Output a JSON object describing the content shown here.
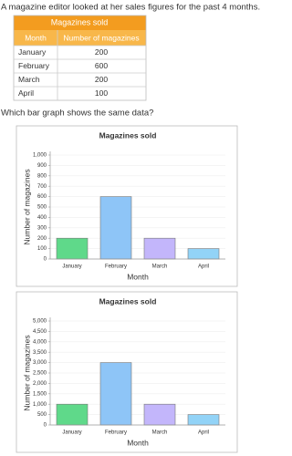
{
  "question": "A magazine editor looked at her sales figures for the past 4 months.",
  "table": {
    "title": "Magazines sold",
    "header": [
      "Month",
      "Number of magazines"
    ],
    "rows": [
      [
        "January",
        200
      ],
      [
        "February",
        600
      ],
      [
        "March",
        200
      ],
      [
        "April",
        100
      ]
    ]
  },
  "prompt": "Which bar graph shows the same data?",
  "chart_data": [
    {
      "type": "bar",
      "title": "Magazines sold",
      "x_label": "Month",
      "y_label": "Number of magazines",
      "categories": [
        "January",
        "February",
        "March",
        "April"
      ],
      "values": [
        200,
        600,
        200,
        100
      ],
      "colors": [
        "#5fd98a",
        "#8ec5f7",
        "#c3b6fb",
        "#92d3f7"
      ],
      "ylim": [
        0,
        1000
      ],
      "yticks": [
        0,
        100,
        200,
        300,
        400,
        500,
        600,
        700,
        800,
        900,
        {
          "value": 1000,
          "label": "1,000"
        }
      ],
      "grid": true
    },
    {
      "type": "bar",
      "title": "Magazines sold",
      "x_label": "Month",
      "y_label": "Number of magazines",
      "categories": [
        "January",
        "February",
        "March",
        "April"
      ],
      "values": [
        1000,
        3000,
        1000,
        500
      ],
      "colors": [
        "#5fd98a",
        "#8ec5f7",
        "#c3b6fb",
        "#92d3f7"
      ],
      "ylim": [
        0,
        5000
      ],
      "yticks": [
        0,
        500,
        {
          "value": 1000,
          "label": "1,000"
        },
        {
          "value": 1500,
          "label": "1,500"
        },
        {
          "value": 2000,
          "label": "2,000"
        },
        {
          "value": 2500,
          "label": "2,500"
        },
        {
          "value": 3000,
          "label": "3,000"
        },
        {
          "value": 3500,
          "label": "3,500"
        },
        {
          "value": 4000,
          "label": "4,000"
        },
        {
          "value": 4500,
          "label": "4,500"
        },
        {
          "value": 5000,
          "label": "5,000"
        }
      ],
      "grid": true
    }
  ]
}
